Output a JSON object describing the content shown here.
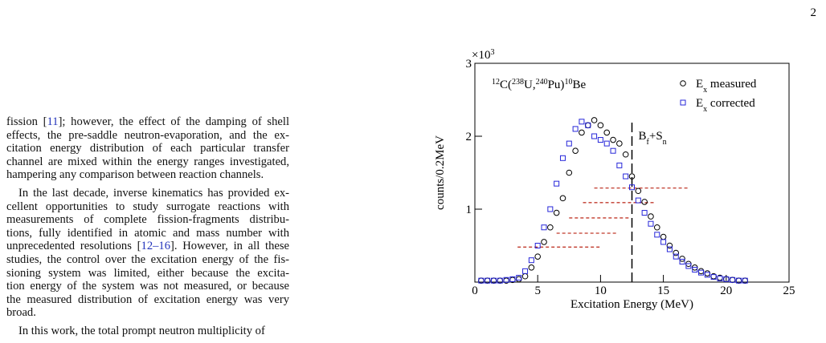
{
  "page_number": "2",
  "paragraphs": [
    {
      "indent": false,
      "lines": [
        [
          "fission [",
          "11",
          "]; however, the effect of the damping of shell"
        ],
        [
          "effects, the pre-saddle neutron-evaporation, and the ex-"
        ],
        [
          "citation energy distribution of each particular transfer"
        ],
        [
          "channel are mixed within the energy ranges investigated,"
        ],
        [
          "hampering any comparison between reaction channels."
        ]
      ]
    },
    {
      "indent": true,
      "lines": [
        [
          "In the last decade, inverse kinematics has provided ex-"
        ],
        [
          "cellent opportunities to study surrogate reactions with"
        ],
        [
          "measurements of complete fission-fragments distribu-"
        ],
        [
          "tions, fully identified in atomic and mass number with"
        ],
        [
          "unprecedented resolutions [",
          "12–16",
          "]. However, in all these"
        ],
        [
          "studies, the control over the excitation energy of the fis-"
        ],
        [
          "sioning system was limited, either because the excita-"
        ],
        [
          "tion energy of the system was not measured, or because"
        ],
        [
          "the measured distribution of excitation energy was very"
        ],
        [
          "broad."
        ]
      ]
    },
    {
      "indent": true,
      "lines": [
        [
          "In this work, the total prompt neutron multiplicity of"
        ]
      ]
    }
  ],
  "chart_data": {
    "type": "scatter",
    "x_label": "Excitation Energy (MeV)",
    "y_label": "counts/0.2MeV",
    "y_scale_label": [
      {
        "t": "×10"
      },
      {
        "t": "3",
        "sup": true
      }
    ],
    "annotation": [
      {
        "t": "12",
        "sup": true
      },
      {
        "t": "C("
      },
      {
        "t": "238",
        "sup": true
      },
      {
        "t": "U,"
      },
      {
        "t": "240",
        "sup": true
      },
      {
        "t": "Pu)"
      },
      {
        "t": "10",
        "sup": true
      },
      {
        "t": "Be"
      }
    ],
    "xlim": [
      0,
      25
    ],
    "xticks": [
      0,
      5,
      10,
      15,
      20,
      25
    ],
    "ylim": [
      0,
      3
    ],
    "yticks": [
      1,
      2,
      3
    ],
    "x": [
      0.5,
      1,
      1.5,
      2,
      2.5,
      3,
      3.5,
      4,
      4.5,
      5,
      5.5,
      6,
      6.5,
      7,
      7.5,
      8,
      8.5,
      9,
      9.5,
      10,
      10.5,
      11,
      11.5,
      12,
      12.5,
      13,
      13.5,
      14,
      14.5,
      15,
      15.5,
      16,
      16.5,
      17,
      17.5,
      18,
      18.5,
      19,
      19.5,
      20,
      20.5,
      21,
      21.5
    ],
    "series": [
      {
        "name": [
          {
            "t": "E"
          },
          {
            "t": "x",
            "sub": true
          },
          {
            "t": " measured"
          }
        ],
        "marker": "circle",
        "color": "#000000",
        "values": [
          0.02,
          0.02,
          0.02,
          0.02,
          0.02,
          0.03,
          0.04,
          0.08,
          0.2,
          0.35,
          0.55,
          0.75,
          0.95,
          1.15,
          1.5,
          1.8,
          2.05,
          2.15,
          2.22,
          2.15,
          2.05,
          1.95,
          1.9,
          1.75,
          1.45,
          1.25,
          1.1,
          0.9,
          0.75,
          0.62,
          0.5,
          0.4,
          0.32,
          0.25,
          0.2,
          0.15,
          0.12,
          0.08,
          0.06,
          0.04,
          0.03,
          0.02,
          0.02
        ]
      },
      {
        "name": [
          {
            "t": "E"
          },
          {
            "t": "x",
            "sub": true
          },
          {
            "t": " corrected"
          }
        ],
        "marker": "square",
        "color": "#2626d9",
        "values": [
          0.02,
          0.02,
          0.02,
          0.02,
          0.03,
          0.04,
          0.06,
          0.15,
          0.3,
          0.5,
          0.75,
          1.0,
          1.35,
          1.7,
          1.9,
          2.1,
          2.2,
          2.15,
          2.0,
          1.95,
          1.9,
          1.8,
          1.6,
          1.45,
          1.3,
          1.12,
          0.95,
          0.8,
          0.65,
          0.55,
          0.45,
          0.35,
          0.28,
          0.22,
          0.17,
          0.13,
          0.1,
          0.07,
          0.05,
          0.04,
          0.03,
          0.02,
          0.02
        ]
      }
    ],
    "reference_lines": {
      "color": "#c0392b",
      "lines": [
        {
          "y": 0.48,
          "x0": 3.4,
          "x1": 10.1
        },
        {
          "y": 0.67,
          "x0": 6.5,
          "x1": 11.3
        },
        {
          "y": 0.88,
          "x0": 7.5,
          "x1": 12.3
        },
        {
          "y": 1.09,
          "x0": 8.6,
          "x1": 14.3
        },
        {
          "y": 1.29,
          "x0": 9.5,
          "x1": 17.1
        }
      ]
    },
    "vline": {
      "x": 12.5,
      "ymax": 2.2,
      "label": [
        {
          "t": "B"
        },
        {
          "t": "f",
          "sub": true
        },
        {
          "t": "+S"
        },
        {
          "t": "n",
          "sub": true
        }
      ]
    }
  }
}
